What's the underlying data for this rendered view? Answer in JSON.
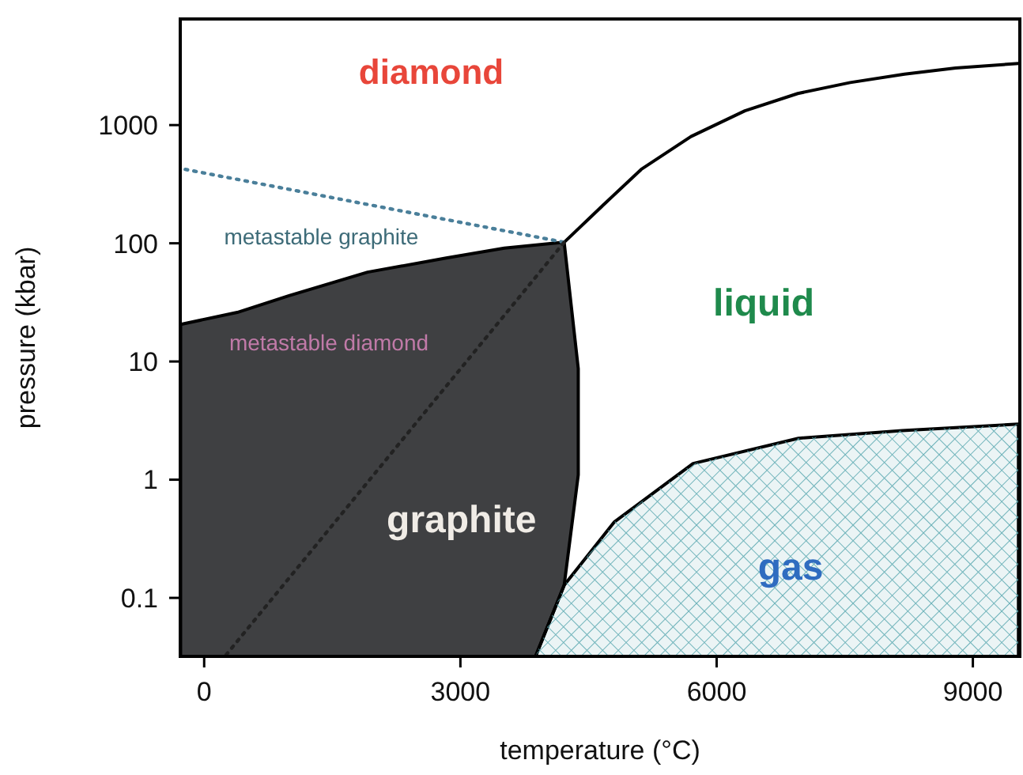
{
  "chart_data": {
    "type": "line",
    "xlabel": "temperature (°C)",
    "ylabel": "pressure (kbar)",
    "log": "y",
    "grid": false,
    "xlim": [
      -280,
      9550
    ],
    "ylim": [
      0.032,
      7900
    ],
    "xticks": [
      0,
      3000,
      6000,
      9000
    ],
    "yticks": [
      0.1,
      1,
      10,
      100,
      1000
    ],
    "series": [
      {
        "type": "area",
        "color": "#3f4042",
        "x": [
          -276,
          387,
          994,
          1914,
          2834,
          3515,
          4215,
          4380,
          4380,
          4215,
          3880
        ],
        "values": [
          20.6,
          26,
          36,
          57,
          75,
          91,
          102,
          8.7,
          1.1,
          0.128,
          0.032
        ]
      },
      {
        "type": "area",
        "color": "#5aa8b0",
        "x": [
          3880,
          4215,
          4804,
          5724,
          6957,
          8172,
          9534
        ],
        "values": [
          0.032,
          0.128,
          0.44,
          1.37,
          2.24,
          2.6,
          2.95
        ]
      },
      {
        "color": "#000000",
        "x": [
          4215,
          4700,
          5117,
          5700,
          6331,
          6950,
          7564,
          8200,
          8798,
          9534
        ],
        "values": [
          102,
          220,
          422,
          800,
          1320,
          1850,
          2290,
          2700,
          3040,
          3320
        ]
      },
      {
        "color": "#4a7f9a",
        "line_style": "dotted",
        "x": [
          -221,
          4215
        ],
        "values": [
          422,
          102
        ]
      },
      {
        "color": "#222222",
        "line_style": "dotted",
        "x": [
          258,
          4215
        ],
        "values": [
          0.033,
          102
        ]
      }
    ],
    "annotations": [
      "diamond",
      "metastable graphite",
      "metastable diamond",
      "graphite",
      "liquid",
      "gas"
    ]
  }
}
